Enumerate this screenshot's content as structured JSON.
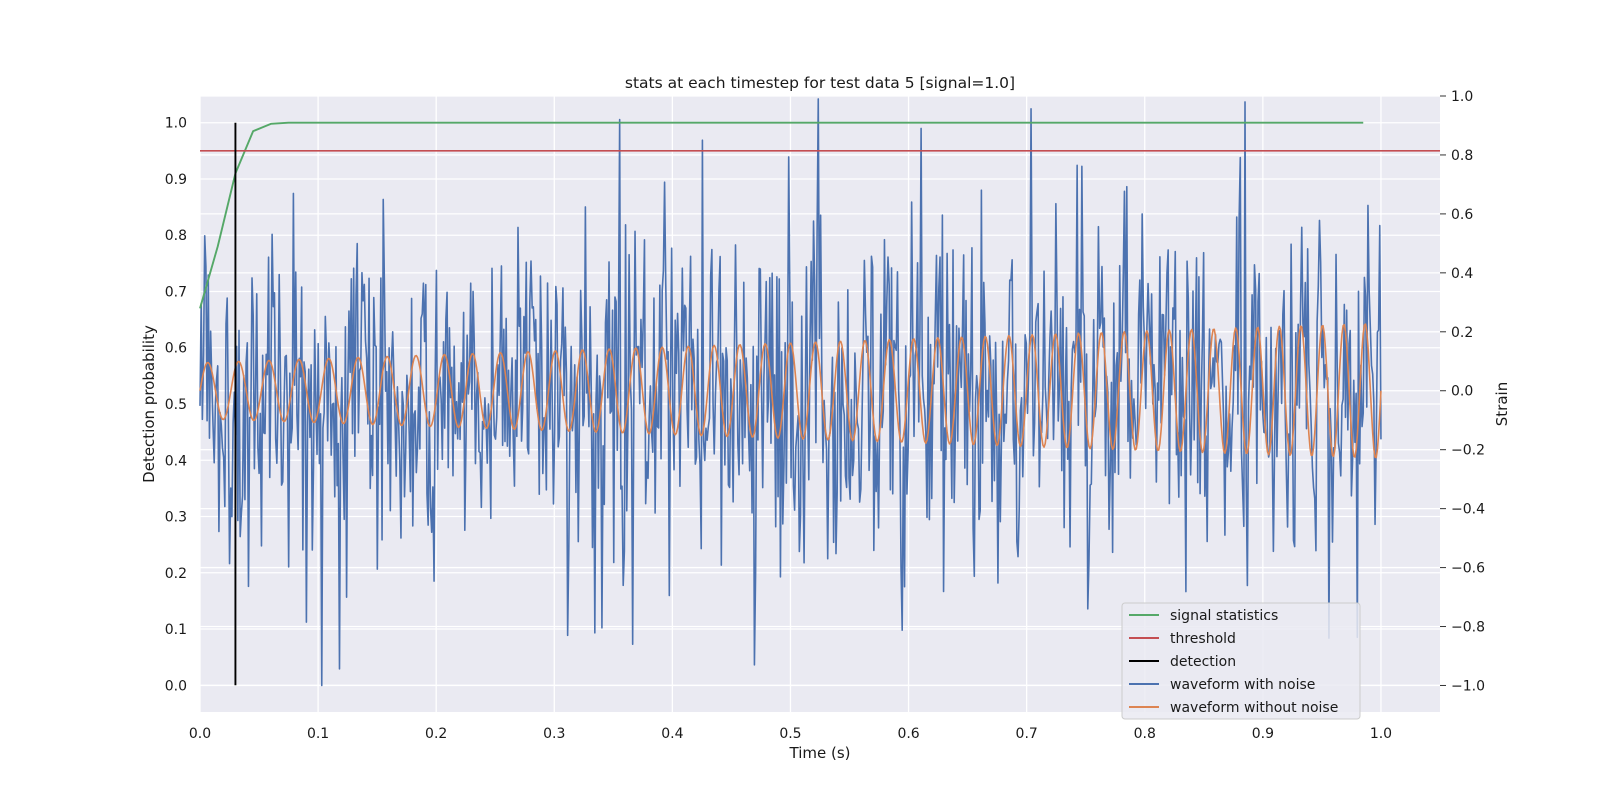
{
  "chart_data": {
    "type": "line",
    "title": "stats at each timestep for test data 5 [signal=1.0]",
    "xlabel": "Time (s)",
    "ylabel_left": "Detection probability",
    "ylabel_right": "Strain",
    "xlim": [
      0.0,
      1.05
    ],
    "ylim_left": [
      -0.0475,
      1.0475
    ],
    "ylim_right": [
      -1.09,
      1.0
    ],
    "xticks": [
      "0.0",
      "0.1",
      "0.2",
      "0.3",
      "0.4",
      "0.5",
      "0.6",
      "0.7",
      "0.8",
      "0.9",
      "1.0"
    ],
    "xtick_values": [
      0,
      0.1,
      0.2,
      0.3,
      0.4,
      0.5,
      0.6,
      0.7,
      0.8,
      0.9,
      1.0
    ],
    "yticks_left": [
      "0.0",
      "0.1",
      "0.2",
      "0.3",
      "0.4",
      "0.5",
      "0.6",
      "0.7",
      "0.8",
      "0.9",
      "1.0"
    ],
    "ytick_left_values": [
      0,
      0.1,
      0.2,
      0.3,
      0.4,
      0.5,
      0.6,
      0.7,
      0.8,
      0.9,
      1.0
    ],
    "yticks_right": [
      "−1.0",
      "−0.8",
      "−0.6",
      "−0.4",
      "−0.2",
      "0.0",
      "0.2",
      "0.4",
      "0.6",
      "0.8",
      "1.0"
    ],
    "ytick_right_values": [
      -1.0,
      -0.8,
      -0.6,
      -0.4,
      -0.2,
      0.0,
      0.2,
      0.4,
      0.6,
      0.8,
      1.0
    ],
    "grid": true,
    "legend_position": "lower-right",
    "series": [
      {
        "name": "signal statistics",
        "axis": "left",
        "color": "#55a868",
        "x": [
          0.0,
          0.015,
          0.03,
          0.045,
          0.06,
          0.075,
          0.09,
          0.12,
          0.2,
          0.4,
          0.6,
          0.8,
          0.985
        ],
        "y": [
          0.67,
          0.78,
          0.91,
          0.985,
          0.998,
          1.0,
          1.0,
          1.0,
          1.0,
          1.0,
          1.0,
          1.0,
          1.0
        ]
      },
      {
        "name": "threshold",
        "axis": "left",
        "color": "#c44e52",
        "x": [
          0.0,
          1.05
        ],
        "y": [
          0.95,
          0.95
        ]
      },
      {
        "name": "detection",
        "axis": "left",
        "color": "#000000",
        "x": [
          0.03,
          0.03
        ],
        "y": [
          0.0,
          1.0
        ]
      },
      {
        "name": "waveform with noise",
        "axis": "right",
        "color": "#4c72b0",
        "generator": {
          "kind": "noise-plus-chirp",
          "x_start": 0.0,
          "x_end": 1.0,
          "points": 1000,
          "noise_std": 0.27,
          "clip": [
            -1.0,
            1.0
          ],
          "seed": 5
        },
        "extremes": [
          {
            "x": 0.103,
            "y": -1.0
          },
          {
            "x": 0.355,
            "y": 0.92
          },
          {
            "x": 0.366,
            "y": -0.86
          },
          {
            "x": 0.425,
            "y": 0.85
          },
          {
            "x": 0.469,
            "y": -0.93
          },
          {
            "x": 0.524,
            "y": 0.99
          },
          {
            "x": 0.611,
            "y": 0.89
          },
          {
            "x": 0.885,
            "y": 0.98
          }
        ]
      },
      {
        "name": "waveform without noise",
        "axis": "right",
        "color": "#dd8452",
        "generator": {
          "kind": "chirp",
          "x_start": 0.0,
          "x_end": 1.0,
          "points": 1000,
          "start_frequency_hz": 38,
          "end_frequency_hz": 56,
          "start_amplitude": 0.095,
          "end_amplitude": 0.23
        }
      }
    ]
  }
}
